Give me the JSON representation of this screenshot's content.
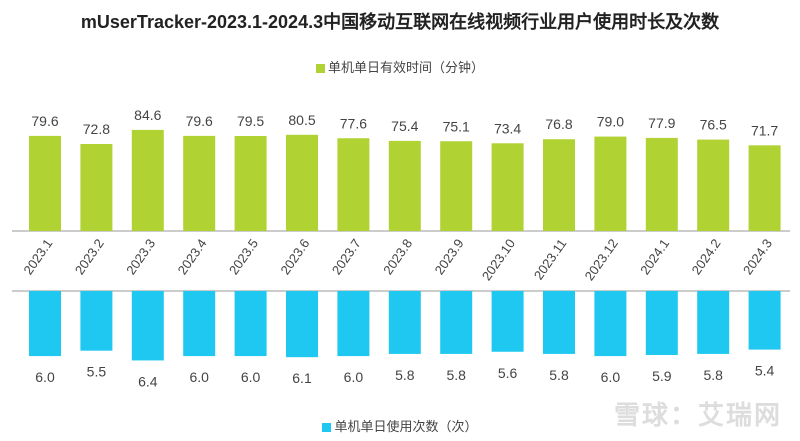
{
  "chart_data": {
    "type": "bar",
    "title": "mUserTracker-2023.1-2024.3中国移动互联网在线视频行业用户使用时长及次数",
    "categories": [
      "2023.1",
      "2023.2",
      "2023.3",
      "2023.4",
      "2023.5",
      "2023.6",
      "2023.7",
      "2023.8",
      "2023.9",
      "2023.10",
      "2023.11",
      "2023.12",
      "2024.1",
      "2024.2",
      "2024.3"
    ],
    "series": [
      {
        "name": "单机单日有效时间（分钟）",
        "color": "#b0d232",
        "values": [
          79.6,
          72.8,
          84.6,
          79.6,
          79.5,
          80.5,
          77.6,
          75.4,
          75.1,
          73.4,
          76.8,
          79.0,
          77.9,
          76.5,
          71.7
        ]
      },
      {
        "name": "单机单日使用次数（次）",
        "color": "#1ec8f0",
        "values": [
          6.0,
          5.5,
          6.4,
          6.0,
          6.0,
          6.1,
          6.0,
          5.8,
          5.8,
          5.6,
          5.8,
          6.0,
          5.9,
          5.8,
          5.4
        ]
      }
    ],
    "legend": "top for green series, bottom for blue series",
    "grid": false
  },
  "watermark": "雪球：艾瑞网"
}
